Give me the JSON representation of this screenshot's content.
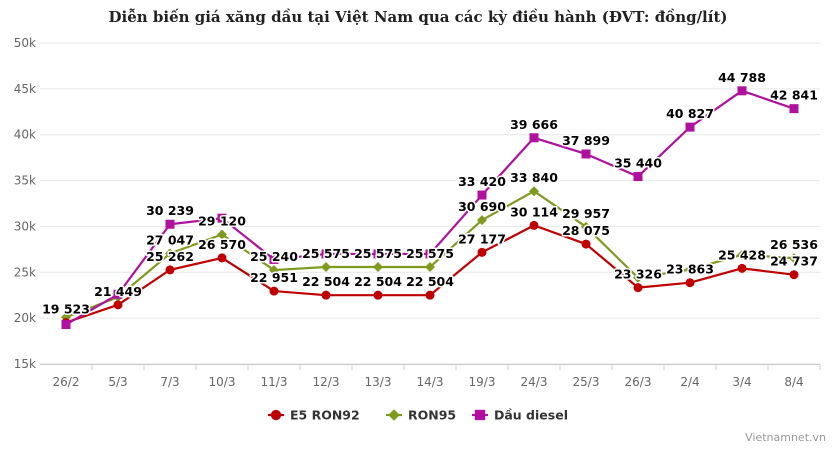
{
  "chart_data": {
    "type": "line",
    "title": "Diễn biến giá xăng dầu tại Việt Nam qua các kỳ điều hành (ĐVT: đồng/lít)",
    "categories": [
      "26/2",
      "5/3",
      "7/3",
      "10/3",
      "11/3",
      "12/3",
      "13/3",
      "14/3",
      "19/3",
      "24/3",
      "25/3",
      "26/3",
      "2/4",
      "3/4",
      "8/4"
    ],
    "ylim": [
      15000,
      50000
    ],
    "yticks": [
      15000,
      20000,
      25000,
      30000,
      35000,
      40000,
      45000,
      50000
    ],
    "ytick_labels": [
      "15k",
      "20k",
      "25k",
      "30k",
      "35k",
      "40k",
      "45k",
      "50k"
    ],
    "grid": "horizontal",
    "legend_position": "bottom-center",
    "series": [
      {
        "name": "E5 RON92",
        "color": "#c00000",
        "marker": "circle",
        "values": [
          19523,
          21449,
          25262,
          26570,
          22951,
          22504,
          22504,
          22504,
          27177,
          30114,
          28075,
          23326,
          23863,
          25428,
          24737
        ],
        "labels": [
          "19 523",
          "21 449",
          "25 262",
          "26 570",
          "22 951",
          "22 504",
          "22 504",
          "22 504",
          "27 177",
          "30 114",
          "28 075",
          "23 326",
          "23 863",
          "25 428",
          "24 737"
        ]
      },
      {
        "name": "RON95",
        "color": "#7f9a1f",
        "marker": "diamond",
        "values": [
          20100,
          22300,
          27047,
          29120,
          25240,
          25575,
          25575,
          25575,
          30690,
          33840,
          29957,
          24400,
          25300,
          26900,
          26536
        ],
        "labels": [
          "",
          "",
          "27 047",
          "29 120",
          "25 240",
          "25 575",
          "25 575",
          "25 575",
          "30 690",
          "33 840",
          "29 957",
          "",
          "",
          "",
          "26 536"
        ]
      },
      {
        "name": "Dầu diesel",
        "color": "#b0109e",
        "marker": "square",
        "values": [
          19300,
          22600,
          30239,
          30900,
          26400,
          27000,
          27000,
          27000,
          33420,
          39666,
          37899,
          35440,
          40827,
          44788,
          42841
        ],
        "labels": [
          "",
          "",
          "30 239",
          "",
          "",
          "",
          "",
          "",
          "33 420",
          "39 666",
          "37 899",
          "35 440",
          "40 827",
          "44 788",
          "42 841"
        ]
      }
    ]
  },
  "credit": "Vietnamnet.vn"
}
